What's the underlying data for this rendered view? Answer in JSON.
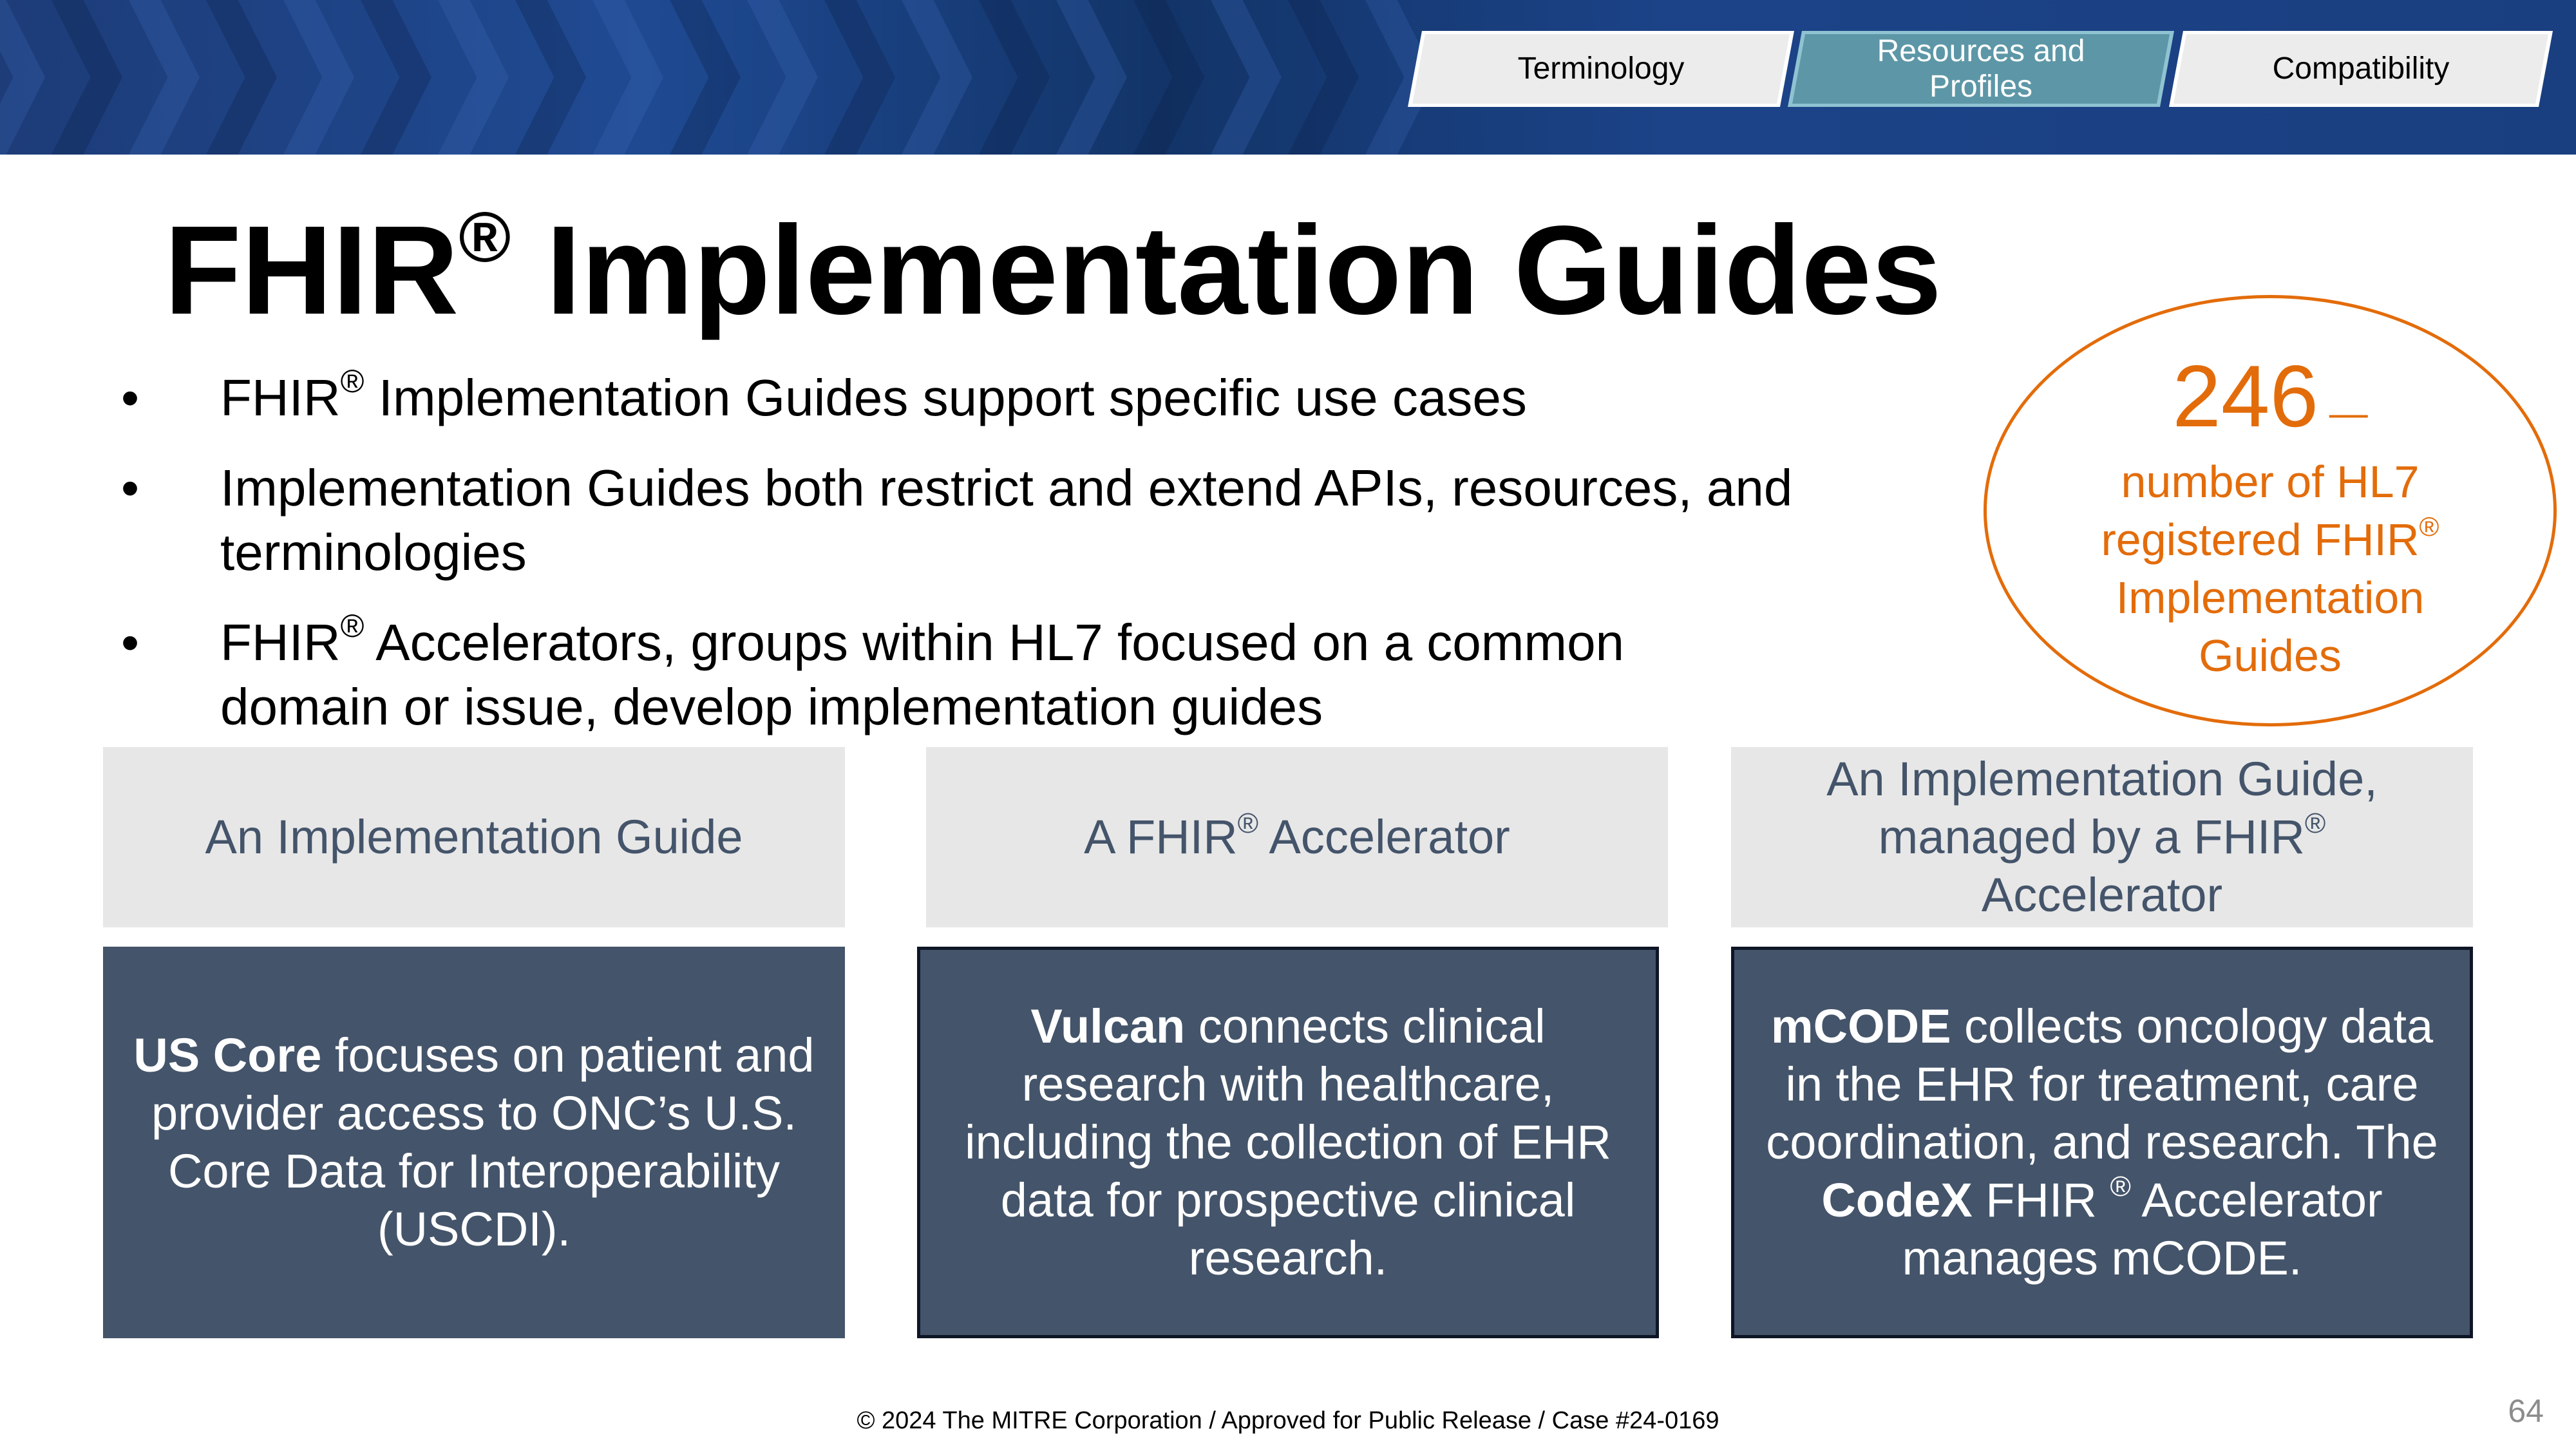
{
  "nav": {
    "tabs": [
      {
        "label": "Terminology",
        "active": false
      },
      {
        "label": "Resources and Profiles",
        "active": true
      },
      {
        "label": "Compatibility",
        "active": false
      }
    ]
  },
  "title": {
    "text": "FHIR",
    "reg": "®",
    "rest": " Implementation Guides"
  },
  "bullets": [
    {
      "marker": "•",
      "prefix": "FHIR",
      "reg": "®",
      "text": " Implementation Guides support specific use cases"
    },
    {
      "marker": "•",
      "prefix": "",
      "reg": "",
      "text": "Implementation Guides both restrict and extend APIs, resources, and terminologies"
    },
    {
      "marker": "•",
      "prefix": "FHIR",
      "reg": "®",
      "text": " Accelerators, groups within HL7 focused on a common domain or issue, develop implementation guides"
    }
  ],
  "callout": {
    "number": "246",
    "dash": " —",
    "line1": "number of HL7",
    "line2": "registered FHIR",
    "reg": "®",
    "line3": "Implementation",
    "line4": "Guides"
  },
  "columns": [
    {
      "header_pre": "An Implementation Guide",
      "header_reg": "",
      "header_post": "",
      "bold1": "US Core",
      "text1": " focuses on patient and provider access to ONC’s U.S. Core Data for Interoperability (USCDI).",
      "bold2": "",
      "text2": "",
      "reg": "",
      "text3": ""
    },
    {
      "header_pre": "A FHIR",
      "header_reg": "®",
      "header_post": " Accelerator",
      "bold1": "Vulcan",
      "text1": " connects clinical research with healthcare, including the collection of EHR data for prospective clinical research.",
      "bold2": "",
      "text2": "",
      "reg": "",
      "text3": ""
    },
    {
      "header_pre": "An Implementation Guide, managed by a FHIR",
      "header_reg": "®",
      "header_post": " Accelerator",
      "bold1": "mCODE",
      "text1": " collects oncology data in the EHR for treatment, care coordination, and research. The ",
      "bold2": "CodeX",
      "text2": " FHIR ",
      "reg": "®",
      "text3": " Accelerator manages mCODE."
    }
  ],
  "footer": {
    "copyright": "© 2024 The MITRE Corporation / Approved for Public Release / Case #24-0169",
    "page": "64"
  }
}
